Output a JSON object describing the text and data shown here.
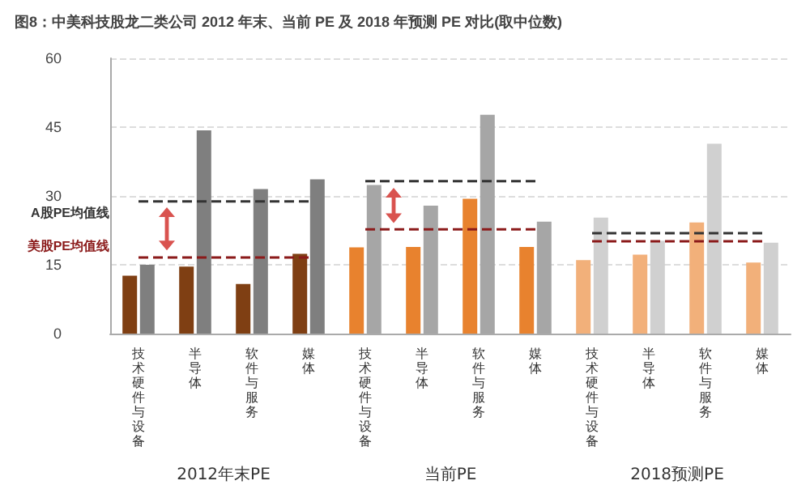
{
  "chart_data": {
    "type": "bar",
    "title": "图8：中美科技股龙二类公司 2012 年末、当前 PE 及 2018 年预测 PE 对比(取中位数)",
    "categories": [
      "技术硬件与设备",
      "半导体",
      "软件与服务",
      "媒体",
      "技术硬件与设备",
      "半导体",
      "软件与服务",
      "媒体",
      "技术硬件与设备",
      "半导体",
      "软件与服务",
      "媒体"
    ],
    "annotations": [
      "2012年末PE",
      "当前PE",
      "2018预测PE"
    ],
    "series": [
      {
        "values": [
          12.6,
          14.6,
          10.8,
          17.4,
          18.8,
          18.9,
          29.4,
          18.9,
          16.0,
          17.2,
          24.2,
          15.5
        ],
        "colors": [
          "#7f3f13",
          "#7f3f13",
          "#7f3f13",
          "#7f3f13",
          "#e8822e",
          "#e8822e",
          "#e8822e",
          "#e8822e",
          "#f2b07a",
          "#f2b07a",
          "#f2b07a",
          "#f2b07a"
        ]
      },
      {
        "values": [
          15.0,
          44.3,
          31.5,
          33.6,
          32.4,
          27.9,
          47.7,
          24.4,
          25.3,
          20.2,
          41.4,
          19.8
        ],
        "colors": [
          "#7f7f7f",
          "#7f7f7f",
          "#7f7f7f",
          "#7f7f7f",
          "#a6a6a6",
          "#a6a6a6",
          "#a6a6a6",
          "#a6a6a6",
          "#d0d0d0",
          "#d0d0d0",
          "#d0d0d0",
          "#d0d0d0"
        ]
      },
      {
        "type": "line",
        "name": "A股PE均值线",
        "color": "#333333",
        "line_style": "dashed",
        "values": [
          28.8,
          28.8,
          28.8,
          28.8,
          null,
          null,
          null,
          null,
          null,
          null,
          null,
          null
        ]
      },
      {
        "type": "line",
        "name": "美股PE均值线",
        "color": "#8b1a1a",
        "line_style": "dashed",
        "values": [
          16.6,
          16.6,
          16.6,
          16.6,
          null,
          null,
          null,
          null,
          null,
          null,
          null,
          null
        ]
      },
      {
        "type": "line",
        "color": "#333333",
        "line_style": "dashed",
        "values": [
          null,
          null,
          null,
          null,
          33.2,
          33.2,
          33.2,
          33.2,
          null,
          null,
          null,
          null
        ]
      },
      {
        "type": "line",
        "color": "#8b1a1a",
        "line_style": "dashed",
        "values": [
          null,
          null,
          null,
          null,
          22.7,
          22.7,
          22.7,
          22.7,
          null,
          null,
          null,
          null
        ]
      },
      {
        "type": "line",
        "color": "#333333",
        "line_style": "dashed",
        "values": [
          null,
          null,
          null,
          null,
          null,
          null,
          null,
          null,
          21.9,
          21.9,
          21.9,
          21.9
        ]
      },
      {
        "type": "line",
        "color": "#8b1a1a",
        "line_style": "dashed",
        "values": [
          null,
          null,
          null,
          null,
          null,
          null,
          null,
          null,
          20.1,
          20.1,
          20.1,
          20.1
        ]
      }
    ],
    "ylim": [
      0,
      60
    ],
    "yticks": [
      0,
      15,
      30,
      45,
      60
    ],
    "grid": "y",
    "legend": false,
    "marker": "none"
  }
}
